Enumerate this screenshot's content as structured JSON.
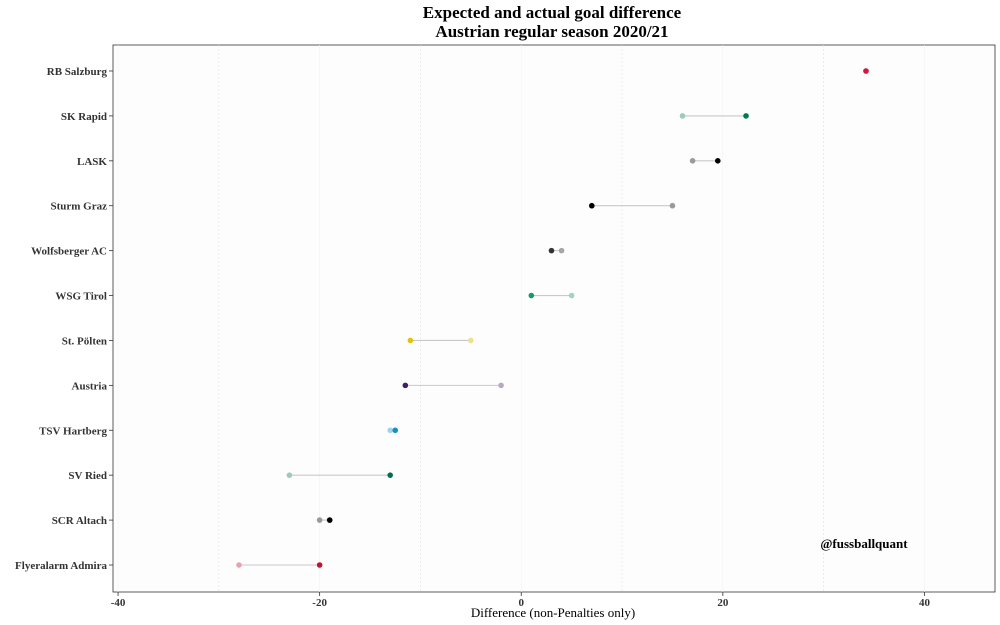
{
  "chart_data": {
    "type": "dumbbell",
    "title": "Expected and actual goal difference",
    "subtitle": "Austrian regular season 2020/21",
    "xlabel": "Difference (non-Penalties only)",
    "ylabel": "",
    "xlim": [
      -40.5,
      47
    ],
    "xticks": [
      -40,
      -20,
      0,
      20,
      40
    ],
    "minor_gridlines": [
      -30,
      -10,
      10,
      30
    ],
    "annotation": "@fussballquant",
    "annotation_position": {
      "x": 34,
      "team": "SCR Altach"
    },
    "teams": [
      {
        "name": "RB Salzburg",
        "xg_diff": 34.2,
        "actual_diff": 34.2,
        "color": "#d7143c",
        "light_color": "#e88a9d"
      },
      {
        "name": "SK Rapid",
        "xg_diff": 16.0,
        "actual_diff": 22.3,
        "color": "#00794c",
        "light_color": "#9ccbb8"
      },
      {
        "name": "LASK",
        "xg_diff": 17.0,
        "actual_diff": 19.5,
        "color": "#000000",
        "light_color": "#9a9a9a"
      },
      {
        "name": "Sturm Graz",
        "xg_diff": 15.0,
        "actual_diff": 7.0,
        "color": "#000000",
        "light_color": "#9a9a9a"
      },
      {
        "name": "Wolfsberger AC",
        "xg_diff": 4.0,
        "actual_diff": 3.0,
        "color": "#333333",
        "light_color": "#a6a6a6"
      },
      {
        "name": "WSG Tirol",
        "xg_diff": 5.0,
        "actual_diff": 1.0,
        "color": "#139b6a",
        "light_color": "#9fd4bd"
      },
      {
        "name": "St. Pölten",
        "xg_diff": -5.0,
        "actual_diff": -11.0,
        "color": "#e6c200",
        "light_color": "#ece28a"
      },
      {
        "name": "Austria",
        "xg_diff": -2.0,
        "actual_diff": -11.5,
        "color": "#3c1f66",
        "light_color": "#b7a9c4"
      },
      {
        "name": "TSV Hartberg",
        "xg_diff": -13.0,
        "actual_diff": -12.5,
        "color": "#1a8fc4",
        "light_color": "#9fd3ea"
      },
      {
        "name": "SV Ried",
        "xg_diff": -23.0,
        "actual_diff": -13.0,
        "color": "#00704a",
        "light_color": "#9fc9b8"
      },
      {
        "name": "SCR Altach",
        "xg_diff": -20.0,
        "actual_diff": -19.0,
        "color": "#000000",
        "light_color": "#9a9a9a"
      },
      {
        "name": "Flyeralarm Admira",
        "xg_diff": -28.0,
        "actual_diff": -20.0,
        "color": "#c8102e",
        "light_color": "#e8a3ad"
      }
    ]
  }
}
